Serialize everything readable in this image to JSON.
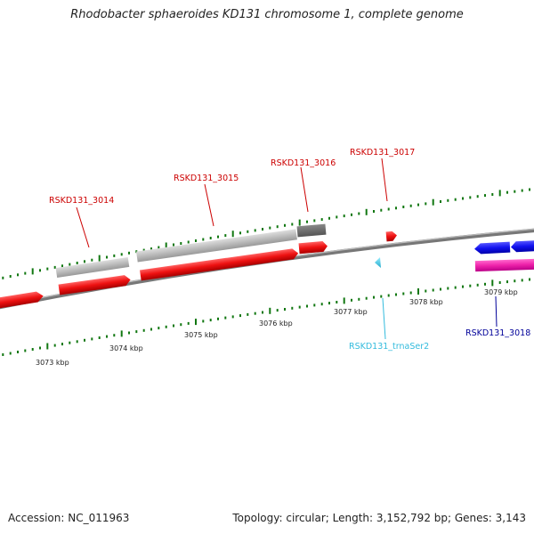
{
  "title": "Rhodobacter sphaeroides KD131 chromosome 1, complete genome",
  "footer": {
    "accession": "Accession: NC_011963",
    "summary": "Topology: circular; Length: 3,152,792 bp; Genes: 3,143"
  },
  "ticks": [
    "3073 kbp",
    "3074 kbp",
    "3075 kbp",
    "3076 kbp",
    "3077 kbp",
    "3078 kbp",
    "3079 kbp"
  ],
  "genes": [
    {
      "label": "RSKD131_3014",
      "color": "#cc0000"
    },
    {
      "label": "RSKD131_3015",
      "color": "#cc0000"
    },
    {
      "label": "RSKD131_3016",
      "color": "#cc0000"
    },
    {
      "label": "RSKD131_3017",
      "color": "#cc0000"
    },
    {
      "label": "RSKD131_trnaSer2",
      "color": "#33bbdd"
    },
    {
      "label": "RSKD131_3018",
      "color": "#000099"
    }
  ],
  "colors": {
    "cds": "#ee1111",
    "gene": "#bbbbbb",
    "trna": "#44ccee",
    "cds_reverse": "#1111ee",
    "pink": "#ee22aa",
    "backbone": "#888888",
    "ticks": "#117711"
  }
}
